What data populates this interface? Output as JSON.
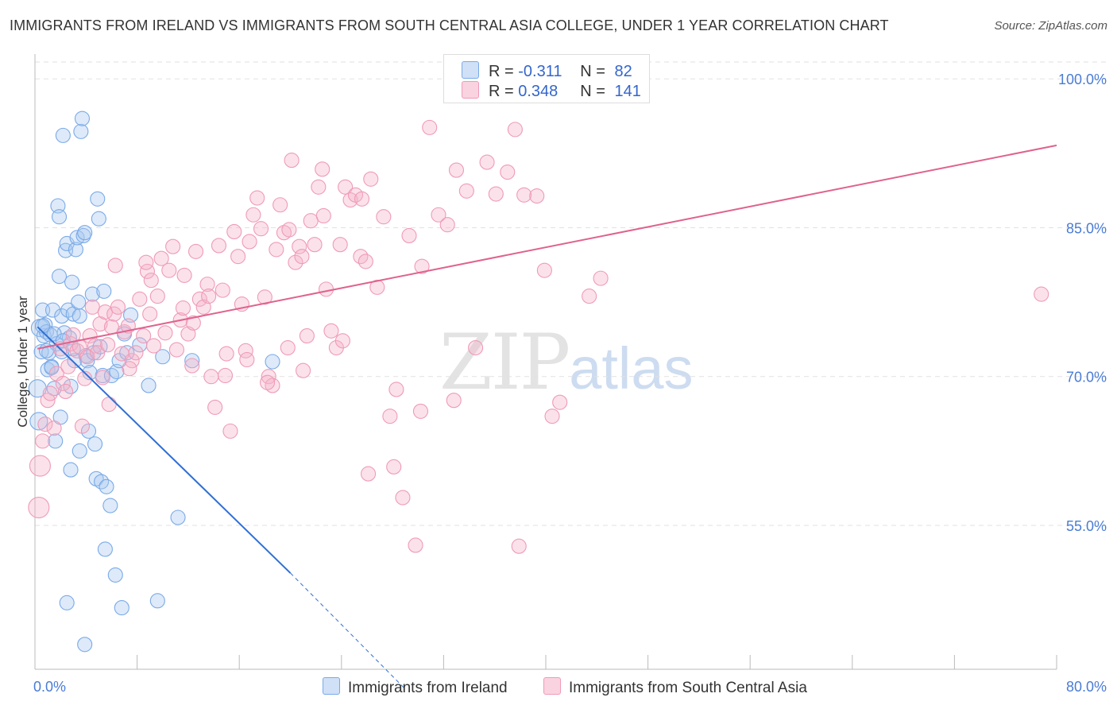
{
  "title": "IMMIGRANTS FROM IRELAND VS IMMIGRANTS FROM SOUTH CENTRAL ASIA COLLEGE, UNDER 1 YEAR CORRELATION CHART",
  "source": "Source: ZipAtlas.com",
  "watermark": {
    "zip": "ZIP",
    "atlas": "atlas"
  },
  "legend": {
    "rows": [
      {
        "r_label": "R = ",
        "r_value": "-0.311",
        "n_label": "N = ",
        "n_value": "82",
        "color": "#a9c8f0"
      },
      {
        "r_label": "R = ",
        "r_value": "0.348",
        "n_label": "N = ",
        "n_value": "141",
        "color": "#f5b3c8"
      }
    ]
  },
  "bottom_legend": [
    "Immigrants from Ireland",
    "Immigrants from South Central Asia"
  ],
  "chart_data": {
    "type": "scatter",
    "title": "IMMIGRANTS FROM IRELAND VS IMMIGRANTS FROM SOUTH CENTRAL ASIA COLLEGE, UNDER 1 YEAR CORRELATION CHART",
    "xlabel": "",
    "ylabel": "College, Under 1 year",
    "xlim": [
      0,
      80
    ],
    "ylim": [
      40.5,
      102.5
    ],
    "x_tick_labels": [
      {
        "v": 0,
        "label": "0.0%"
      },
      {
        "v": 80,
        "label": "80.0%"
      }
    ],
    "y_tick_labels": [
      {
        "v": 100,
        "label": "100.0%"
      },
      {
        "v": 85,
        "label": "85.0%"
      },
      {
        "v": 70,
        "label": "70.0%"
      },
      {
        "v": 55,
        "label": "55.0%"
      }
    ],
    "y_gridlines": [
      100,
      85,
      70,
      55
    ],
    "series": [
      {
        "name": "Immigrants from Ireland",
        "color": "#7aaae8",
        "trend": {
          "x0": 0.2,
          "y0": 75.0,
          "x1": 20.0,
          "y1": 50.2,
          "dash_x1": 29.0,
          "dash_y1": 38.5,
          "color": "#2f6fd6"
        },
        "points": [
          [
            0.2,
            68.8
          ],
          [
            0.3,
            65.5
          ],
          [
            0.4,
            74.9
          ],
          [
            0.5,
            72.5
          ],
          [
            0.6,
            76.7
          ],
          [
            0.7,
            74.1
          ],
          [
            0.8,
            75.2
          ],
          [
            0.9,
            74.5
          ],
          [
            1.0,
            70.7
          ],
          [
            1.1,
            72.4
          ],
          [
            1.2,
            74.2
          ],
          [
            1.3,
            71.0
          ],
          [
            1.4,
            76.7
          ],
          [
            1.5,
            68.8
          ],
          [
            1.6,
            63.5
          ],
          [
            1.7,
            73.3
          ],
          [
            1.8,
            87.2
          ],
          [
            1.9,
            86.1
          ],
          [
            1.9,
            80.1
          ],
          [
            2.0,
            65.9
          ],
          [
            2.1,
            76.1
          ],
          [
            2.1,
            72.5
          ],
          [
            2.2,
            94.3
          ],
          [
            2.3,
            74.4
          ],
          [
            2.4,
            82.7
          ],
          [
            2.5,
            83.4
          ],
          [
            2.6,
            76.7
          ],
          [
            2.7,
            73.9
          ],
          [
            2.8,
            69.0
          ],
          [
            2.8,
            60.6
          ],
          [
            2.9,
            79.5
          ],
          [
            3.0,
            76.3
          ],
          [
            3.1,
            71.6
          ],
          [
            3.2,
            82.8
          ],
          [
            3.3,
            84.0
          ],
          [
            3.4,
            77.5
          ],
          [
            3.5,
            76.1
          ],
          [
            3.5,
            62.5
          ],
          [
            3.6,
            94.7
          ],
          [
            3.7,
            96.0
          ],
          [
            3.8,
            84.2
          ],
          [
            3.9,
            84.5
          ],
          [
            4.0,
            72.1
          ],
          [
            4.1,
            71.6
          ],
          [
            4.2,
            64.5
          ],
          [
            4.3,
            70.4
          ],
          [
            4.5,
            78.3
          ],
          [
            4.6,
            72.4
          ],
          [
            4.7,
            63.2
          ],
          [
            4.8,
            59.7
          ],
          [
            4.9,
            87.9
          ],
          [
            5.0,
            85.9
          ],
          [
            5.1,
            73.0
          ],
          [
            5.2,
            59.4
          ],
          [
            5.3,
            70.1
          ],
          [
            5.4,
            78.6
          ],
          [
            5.5,
            52.6
          ],
          [
            5.6,
            58.9
          ],
          [
            5.9,
            57.0
          ],
          [
            6.0,
            70.1
          ],
          [
            6.3,
            50.0
          ],
          [
            6.4,
            70.5
          ],
          [
            6.6,
            71.6
          ],
          [
            6.8,
            46.7
          ],
          [
            7.0,
            74.3
          ],
          [
            7.2,
            72.4
          ],
          [
            7.5,
            76.2
          ],
          [
            8.2,
            73.2
          ],
          [
            8.9,
            69.1
          ],
          [
            9.6,
            47.4
          ],
          [
            10.0,
            72.0
          ],
          [
            11.2,
            55.8
          ],
          [
            12.3,
            71.6
          ],
          [
            18.6,
            71.5
          ],
          [
            2.5,
            47.2
          ],
          [
            3.9,
            43.0
          ],
          [
            0.6,
            75.1
          ],
          [
            1.5,
            74.3
          ],
          [
            2.2,
            73.6
          ],
          [
            3.0,
            72.8
          ],
          [
            0.9,
            72.6
          ],
          [
            1.3,
            70.9
          ]
        ]
      },
      {
        "name": "Immigrants from South Central Asia",
        "color": "#f09ab8",
        "trend": {
          "x0": 0.2,
          "y0": 72.8,
          "x1": 80.0,
          "y1": 93.3,
          "color": "#e0628e"
        },
        "points": [
          [
            0.3,
            56.8
          ],
          [
            0.4,
            61.0
          ],
          [
            0.6,
            63.5
          ],
          [
            0.8,
            65.2
          ],
          [
            1.0,
            67.6
          ],
          [
            1.2,
            68.3
          ],
          [
            1.5,
            64.8
          ],
          [
            1.7,
            70.3
          ],
          [
            2.0,
            72.8
          ],
          [
            2.2,
            69.3
          ],
          [
            2.4,
            68.5
          ],
          [
            2.6,
            71.0
          ],
          [
            2.8,
            73.3
          ],
          [
            3.0,
            74.2
          ],
          [
            3.3,
            72.6
          ],
          [
            3.5,
            73.0
          ],
          [
            3.7,
            65.0
          ],
          [
            3.9,
            69.8
          ],
          [
            4.1,
            72.0
          ],
          [
            4.3,
            74.1
          ],
          [
            4.5,
            77.0
          ],
          [
            4.7,
            73.1
          ],
          [
            4.9,
            72.4
          ],
          [
            5.1,
            75.3
          ],
          [
            5.3,
            69.9
          ],
          [
            5.5,
            76.5
          ],
          [
            5.7,
            73.2
          ],
          [
            6.0,
            75.0
          ],
          [
            6.2,
            76.3
          ],
          [
            6.5,
            77.0
          ],
          [
            6.8,
            72.3
          ],
          [
            7.0,
            74.5
          ],
          [
            7.3,
            75.1
          ],
          [
            7.6,
            71.6
          ],
          [
            7.9,
            72.4
          ],
          [
            8.2,
            77.8
          ],
          [
            8.5,
            74.1
          ],
          [
            8.8,
            80.6
          ],
          [
            9.0,
            76.3
          ],
          [
            9.3,
            73.1
          ],
          [
            9.6,
            78.1
          ],
          [
            9.9,
            81.9
          ],
          [
            10.2,
            74.4
          ],
          [
            10.5,
            80.7
          ],
          [
            10.8,
            83.1
          ],
          [
            11.1,
            72.7
          ],
          [
            11.4,
            75.7
          ],
          [
            11.7,
            80.2
          ],
          [
            12.0,
            74.3
          ],
          [
            12.3,
            71.1
          ],
          [
            12.6,
            82.6
          ],
          [
            12.9,
            77.8
          ],
          [
            13.2,
            77.0
          ],
          [
            13.5,
            79.3
          ],
          [
            13.8,
            70.0
          ],
          [
            14.1,
            66.9
          ],
          [
            14.4,
            83.2
          ],
          [
            14.7,
            78.7
          ],
          [
            15.0,
            72.3
          ],
          [
            15.3,
            64.5
          ],
          [
            15.6,
            84.6
          ],
          [
            15.9,
            82.1
          ],
          [
            16.2,
            77.3
          ],
          [
            16.5,
            72.6
          ],
          [
            16.8,
            83.6
          ],
          [
            17.1,
            86.3
          ],
          [
            17.4,
            88.0
          ],
          [
            17.7,
            84.9
          ],
          [
            18.0,
            78.0
          ],
          [
            18.3,
            70.0
          ],
          [
            18.6,
            69.1
          ],
          [
            18.9,
            82.8
          ],
          [
            19.2,
            87.3
          ],
          [
            19.5,
            84.5
          ],
          [
            19.8,
            72.9
          ],
          [
            20.1,
            91.8
          ],
          [
            20.4,
            81.5
          ],
          [
            20.7,
            83.1
          ],
          [
            21.0,
            70.6
          ],
          [
            21.3,
            74.1
          ],
          [
            21.6,
            85.7
          ],
          [
            21.9,
            83.3
          ],
          [
            22.2,
            89.1
          ],
          [
            22.5,
            90.9
          ],
          [
            22.8,
            78.8
          ],
          [
            23.2,
            74.6
          ],
          [
            23.6,
            72.9
          ],
          [
            23.9,
            83.3
          ],
          [
            24.3,
            89.1
          ],
          [
            24.7,
            87.8
          ],
          [
            25.1,
            88.3
          ],
          [
            25.5,
            82.1
          ],
          [
            25.9,
            81.6
          ],
          [
            26.3,
            89.9
          ],
          [
            26.8,
            79.0
          ],
          [
            27.3,
            86.1
          ],
          [
            27.8,
            66.0
          ],
          [
            28.3,
            68.7
          ],
          [
            28.8,
            57.8
          ],
          [
            29.3,
            84.2
          ],
          [
            29.8,
            53.0
          ],
          [
            30.3,
            81.1
          ],
          [
            30.9,
            95.1
          ],
          [
            31.6,
            86.3
          ],
          [
            32.3,
            85.3
          ],
          [
            33.0,
            90.8
          ],
          [
            33.8,
            88.7
          ],
          [
            34.5,
            72.9
          ],
          [
            35.4,
            91.6
          ],
          [
            36.1,
            88.4
          ],
          [
            37.0,
            90.6
          ],
          [
            37.6,
            94.9
          ],
          [
            38.3,
            88.3
          ],
          [
            39.3,
            88.2
          ],
          [
            39.9,
            80.7
          ],
          [
            40.5,
            66.0
          ],
          [
            41.1,
            67.4
          ],
          [
            43.4,
            78.1
          ],
          [
            44.3,
            79.9
          ],
          [
            78.8,
            78.3
          ],
          [
            5.8,
            67.2
          ],
          [
            7.4,
            70.8
          ],
          [
            9.1,
            79.7
          ],
          [
            12.4,
            75.4
          ],
          [
            14.9,
            70.1
          ],
          [
            18.2,
            69.4
          ],
          [
            20.9,
            82.1
          ],
          [
            24.1,
            73.6
          ],
          [
            26.1,
            60.2
          ],
          [
            28.1,
            60.9
          ],
          [
            30.2,
            66.5
          ],
          [
            37.9,
            52.9
          ],
          [
            16.6,
            71.7
          ],
          [
            11.6,
            76.9
          ],
          [
            8.7,
            81.5
          ],
          [
            6.3,
            81.2
          ],
          [
            22.6,
            86.2
          ],
          [
            25.6,
            87.9
          ],
          [
            19.9,
            84.8
          ],
          [
            13.6,
            78.1
          ],
          [
            32.8,
            67.6
          ]
        ]
      }
    ]
  }
}
